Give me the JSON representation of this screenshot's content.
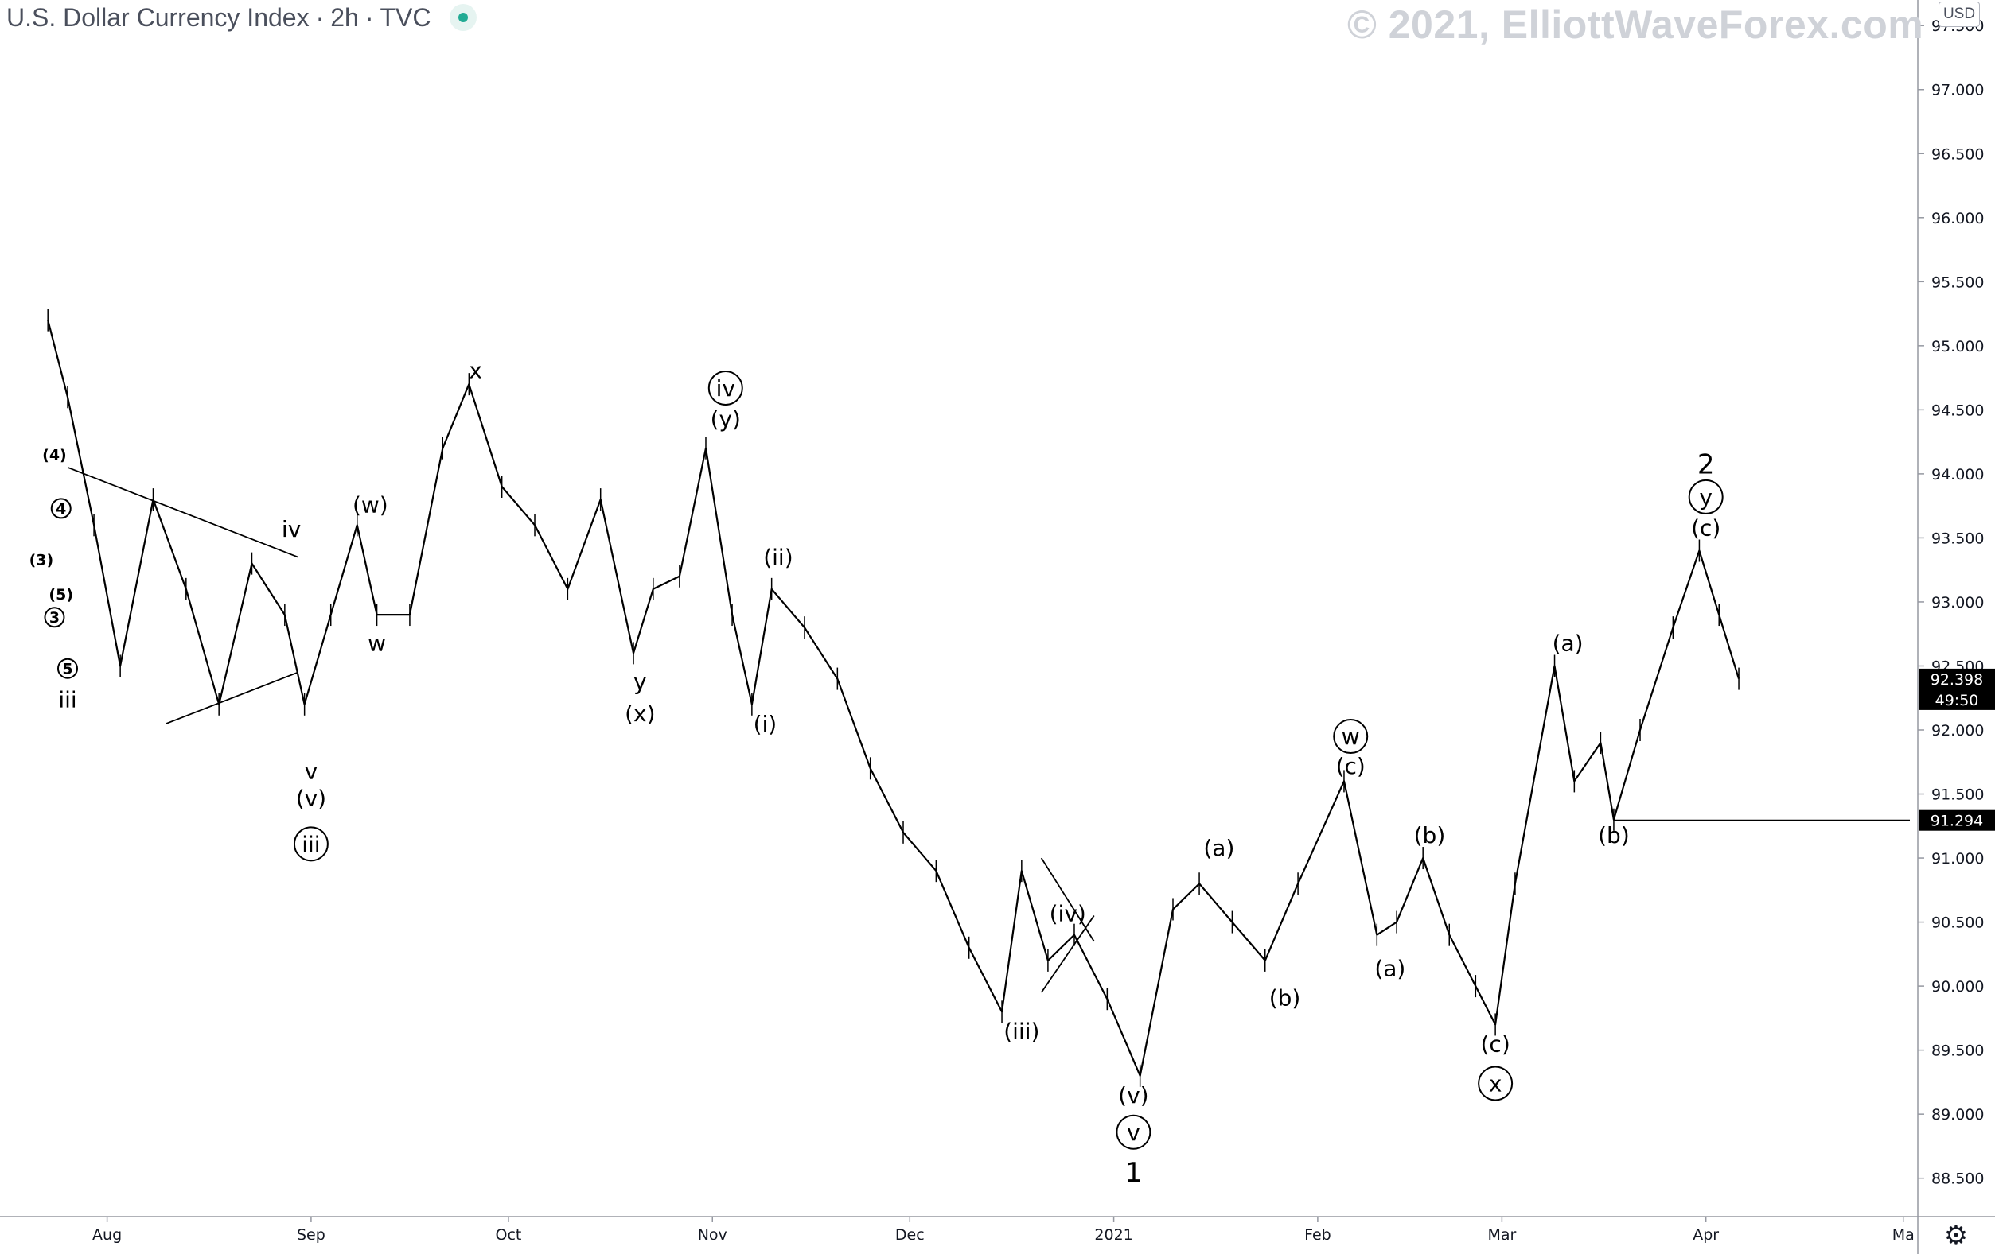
{
  "header": {
    "symbol": "U.S. Dollar Currency Index",
    "interval": "2h",
    "exchange": "TVC",
    "separator": "·"
  },
  "watermark": "© 2021, ElliottWaveForex.com",
  "currency_button": "USD",
  "colors": {
    "candle": "#000000",
    "label_bg": "#000000",
    "label_text": "#ffffff",
    "watermark": "#cfd2d8",
    "status_dot": "#22ab94"
  },
  "icons": {
    "status": "circle-dot-icon",
    "settings": "gear-icon"
  },
  "price_axis": {
    "ticks": [
      "97.500",
      "97.000",
      "96.500",
      "96.000",
      "95.500",
      "95.000",
      "94.500",
      "94.000",
      "93.500",
      "93.000",
      "92.500",
      "92.000",
      "91.500",
      "91.000",
      "90.500",
      "90.000",
      "89.500",
      "89.000",
      "88.500"
    ],
    "last_price": "92.398",
    "countdown": "49:50",
    "level_label": "91.294"
  },
  "time_axis": {
    "ticks": [
      "Aug",
      "Sep",
      "Oct",
      "Nov",
      "Dec",
      "2021",
      "Feb",
      "Mar",
      "Apr",
      "Ma"
    ]
  },
  "chart_data": {
    "type": "line",
    "title": "U.S. Dollar Currency Index · 2h · TVC",
    "x_range": [
      "2020-07-26",
      "2021-05-02"
    ],
    "ylim": [
      88.2,
      97.7
    ],
    "grid": false,
    "x": [
      "2020-07-23",
      "2020-07-26",
      "2020-07-30",
      "2020-08-03",
      "2020-08-08",
      "2020-08-13",
      "2020-08-18",
      "2020-08-23",
      "2020-08-28",
      "2020-08-31",
      "2020-09-04",
      "2020-09-08",
      "2020-09-11",
      "2020-09-16",
      "2020-09-21",
      "2020-09-25",
      "2020-09-30",
      "2020-10-05",
      "2020-10-10",
      "2020-10-15",
      "2020-10-20",
      "2020-10-23",
      "2020-10-27",
      "2020-10-31",
      "2020-11-04",
      "2020-11-07",
      "2020-11-10",
      "2020-11-15",
      "2020-11-20",
      "2020-11-25",
      "2020-11-30",
      "2020-12-05",
      "2020-12-10",
      "2020-12-15",
      "2020-12-18",
      "2020-12-22",
      "2020-12-26",
      "2020-12-31",
      "2021-01-05",
      "2021-01-10",
      "2021-01-14",
      "2021-01-19",
      "2021-01-24",
      "2021-01-29",
      "2021-02-05",
      "2021-02-10",
      "2021-02-13",
      "2021-02-17",
      "2021-02-21",
      "2021-02-25",
      "2021-02-28",
      "2021-03-03",
      "2021-03-09",
      "2021-03-12",
      "2021-03-16",
      "2021-03-18",
      "2021-03-22",
      "2021-03-27",
      "2021-03-31",
      "2021-04-03",
      "2021-04-06"
    ],
    "series": [
      {
        "values": [
          95.2,
          94.6,
          93.6,
          92.5,
          93.8,
          93.1,
          92.2,
          93.3,
          92.9,
          92.2,
          92.9,
          93.6,
          92.9,
          92.9,
          94.2,
          94.7,
          93.9,
          93.6,
          93.1,
          93.8,
          92.6,
          93.1,
          93.2,
          94.2,
          92.9,
          92.2,
          93.1,
          92.8,
          92.4,
          91.7,
          91.2,
          90.9,
          90.3,
          89.8,
          90.9,
          90.2,
          90.4,
          89.9,
          89.3,
          90.6,
          90.8,
          90.5,
          90.2,
          90.8,
          91.6,
          90.4,
          90.5,
          91.0,
          90.4,
          90.0,
          89.7,
          90.8,
          92.5,
          91.6,
          91.9,
          91.3,
          92.0,
          92.8,
          93.4,
          92.9,
          92.4
        ]
      }
    ],
    "trendlines": [
      {
        "name": "upper triangle boundary",
        "from": [
          "2020-07-26",
          94.05
        ],
        "to": [
          "2020-08-30",
          93.35
        ]
      },
      {
        "name": "lower triangle boundary",
        "from": [
          "2020-08-10",
          92.05
        ],
        "to": [
          "2020-08-30",
          92.45
        ]
      },
      {
        "name": "wedge upper",
        "from": [
          "2020-12-21",
          91.0
        ],
        "to": [
          "2020-12-29",
          90.35
        ]
      },
      {
        "name": "wedge lower",
        "from": [
          "2020-12-21",
          89.95
        ],
        "to": [
          "2020-12-29",
          90.55
        ]
      },
      {
        "name": "horizontal level",
        "from": [
          "2021-03-18",
          91.294
        ],
        "to": [
          "2021-05-02",
          91.294
        ]
      }
    ],
    "annotations": [
      {
        "text": "(4)",
        "x": "2020-07-24",
        "y": 94.15,
        "style": "small-bold"
      },
      {
        "text": "4",
        "x": "2020-07-25",
        "y": 93.73,
        "style": "small-circle"
      },
      {
        "text": "(3)",
        "x": "2020-07-22",
        "y": 93.33,
        "style": "small-bold"
      },
      {
        "text": "(5)",
        "x": "2020-07-25",
        "y": 93.06,
        "style": "small-bold"
      },
      {
        "text": "3",
        "x": "2020-07-24",
        "y": 92.88,
        "style": "small-circle"
      },
      {
        "text": "5",
        "x": "2020-07-26",
        "y": 92.48,
        "style": "small-circle"
      },
      {
        "text": "iii",
        "x": "2020-07-26",
        "y": 92.24
      },
      {
        "text": "iv",
        "x": "2020-08-29",
        "y": 93.57
      },
      {
        "text": "(w)",
        "x": "2020-09-10",
        "y": 93.76
      },
      {
        "text": "w",
        "x": "2020-09-11",
        "y": 92.68
      },
      {
        "text": "v",
        "x": "2020-09-01",
        "y": 91.68
      },
      {
        "text": "(v)",
        "x": "2020-09-01",
        "y": 91.47
      },
      {
        "text": "iii",
        "x": "2020-09-01",
        "y": 91.11,
        "style": "circle"
      },
      {
        "text": "x",
        "x": "2020-09-26",
        "y": 94.81
      },
      {
        "text": "y",
        "x": "2020-10-21",
        "y": 92.38
      },
      {
        "text": "(x)",
        "x": "2020-10-21",
        "y": 92.13
      },
      {
        "text": "iv",
        "x": "2020-11-03",
        "y": 94.67,
        "style": "circle"
      },
      {
        "text": "(y)",
        "x": "2020-11-03",
        "y": 94.43
      },
      {
        "text": "(ii)",
        "x": "2020-11-11",
        "y": 93.35
      },
      {
        "text": "(i)",
        "x": "2020-11-09",
        "y": 92.05
      },
      {
        "text": "(iv)",
        "x": "2020-12-25",
        "y": 90.57
      },
      {
        "text": "(iii)",
        "x": "2020-12-18",
        "y": 89.65
      },
      {
        "text": "(v)",
        "x": "2021-01-04",
        "y": 89.15
      },
      {
        "text": "v",
        "x": "2021-01-04",
        "y": 88.86,
        "style": "circle"
      },
      {
        "text": "1",
        "x": "2021-01-04",
        "y": 88.55,
        "style": "large"
      },
      {
        "text": "(a)",
        "x": "2021-01-17",
        "y": 91.08
      },
      {
        "text": "(b)",
        "x": "2021-01-27",
        "y": 89.91
      },
      {
        "text": "w",
        "x": "2021-02-06",
        "y": 91.95,
        "style": "circle"
      },
      {
        "text": "(c)",
        "x": "2021-02-06",
        "y": 91.72
      },
      {
        "text": "(b)",
        "x": "2021-02-18",
        "y": 91.18
      },
      {
        "text": "(a)",
        "x": "2021-02-12",
        "y": 90.14
      },
      {
        "text": "(c)",
        "x": "2021-02-28",
        "y": 89.55
      },
      {
        "text": "x",
        "x": "2021-02-28",
        "y": 89.24,
        "style": "circle"
      },
      {
        "text": "(a)",
        "x": "2021-03-11",
        "y": 92.68
      },
      {
        "text": "(b)",
        "x": "2021-03-18",
        "y": 91.18
      },
      {
        "text": "2",
        "x": "2021-04-01",
        "y": 94.08,
        "style": "large"
      },
      {
        "text": "y",
        "x": "2021-04-01",
        "y": 93.82,
        "style": "circle"
      },
      {
        "text": "(c)",
        "x": "2021-04-01",
        "y": 93.58
      }
    ]
  }
}
